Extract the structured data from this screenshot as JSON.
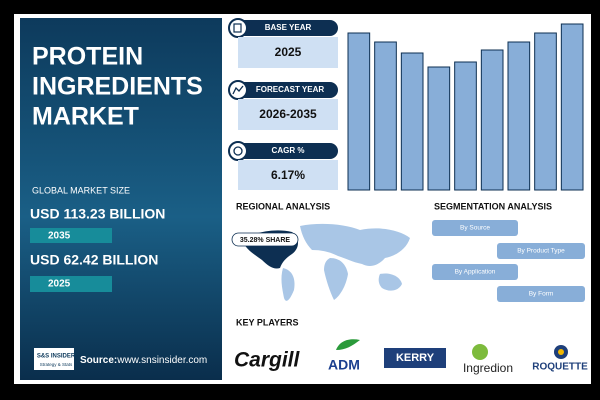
{
  "left_panel": {
    "title_lines": [
      "PROTEIN",
      "INGREDIENTS",
      "MARKET"
    ],
    "market_size_label": "GLOBAL MARKET SIZE",
    "forecast_value": "USD 113.23 BILLION",
    "forecast_year": "2035",
    "base_value": "USD 62.42 BILLION",
    "base_year": "2025",
    "logo_text": "S&S INSIDER",
    "logo_tagline": "Strategy & Stats",
    "source_label": "Source:",
    "source_url": "www.snsinsider.com"
  },
  "cards": [
    {
      "label": "BASE YEAR",
      "value": "2025"
    },
    {
      "label": "FORECAST YEAR",
      "value": "2026-2035"
    },
    {
      "label": "CAGR %",
      "value": "6.17%"
    }
  ],
  "chart_data": {
    "type": "bar",
    "values": [
      157,
      148,
      137,
      123,
      128,
      140,
      148,
      157,
      166
    ],
    "ylim": [
      0,
      170
    ],
    "color": "#88aed8"
  },
  "regional": {
    "title": "REGIONAL ANALYSIS",
    "share_label": "35.28% SHARE"
  },
  "segmentation": {
    "title": "SEGMENTATION ANALYSIS",
    "items": [
      "By Source",
      "By Product Type",
      "By Application",
      "By Form"
    ]
  },
  "key_players": {
    "title": "KEY PLAYERS",
    "companies": [
      "Cargill",
      "ADM",
      "KERRY",
      "Ingredion",
      "ROQUETTE"
    ]
  }
}
